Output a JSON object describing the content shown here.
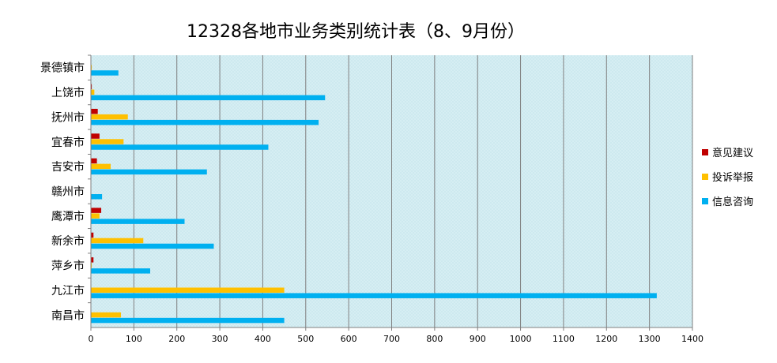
{
  "chart_data": {
    "type": "bar",
    "orientation": "horizontal",
    "title": "12328各地市业务类别统计表（8、9月份）",
    "categories": [
      "景德镇市",
      "上饶市",
      "抚州市",
      "宜春市",
      "吉安市",
      "赣州市",
      "鹰潭市",
      "新余市",
      "萍乡市",
      "九江市",
      "南昌市"
    ],
    "series": [
      {
        "name": "意见建议",
        "color": "#c00000",
        "values": [
          0,
          2,
          16,
          20,
          14,
          0,
          24,
          6,
          6,
          0,
          0
        ]
      },
      {
        "name": "投诉举报",
        "color": "#ffc000",
        "values": [
          2,
          8,
          86,
          76,
          46,
          0,
          20,
          122,
          2,
          450,
          70
        ]
      },
      {
        "name": "信息咨询",
        "color": "#00b0f0",
        "values": [
          64,
          545,
          530,
          413,
          270,
          26,
          218,
          286,
          138,
          1317,
          450
        ]
      }
    ],
    "xlim": [
      0,
      1400
    ],
    "xticks": [
      0,
      100,
      200,
      300,
      400,
      500,
      600,
      700,
      800,
      900,
      1000,
      1100,
      1200,
      1300,
      1400
    ],
    "grid": "vertical",
    "legend_position": "right"
  }
}
